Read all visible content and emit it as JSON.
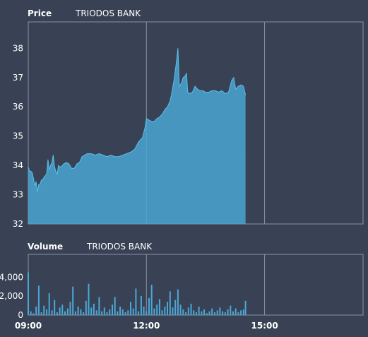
{
  "chart_data": [
    {
      "type": "area",
      "title": "Price",
      "series_label": "TRIODOS BANK",
      "ylim": [
        32,
        38.9
      ],
      "yticks": [
        32,
        33,
        34,
        35,
        36,
        37,
        38
      ],
      "grid": true,
      "color": "#4aa8d8",
      "x_range_minutes": [
        540,
        1050
      ],
      "points": [
        [
          540,
          33.95
        ],
        [
          542,
          33.8
        ],
        [
          544,
          33.8
        ],
        [
          546,
          33.75
        ],
        [
          548,
          33.55
        ],
        [
          550,
          33.3
        ],
        [
          552,
          33.45
        ],
        [
          554,
          33.1
        ],
        [
          556,
          33.35
        ],
        [
          558,
          33.35
        ],
        [
          560,
          33.5
        ],
        [
          562,
          33.5
        ],
        [
          564,
          33.6
        ],
        [
          566,
          33.65
        ],
        [
          568,
          33.7
        ],
        [
          570,
          34.2
        ],
        [
          572,
          33.85
        ],
        [
          574,
          34.0
        ],
        [
          576,
          34.1
        ],
        [
          578,
          34.35
        ],
        [
          580,
          33.95
        ],
        [
          582,
          33.8
        ],
        [
          584,
          33.7
        ],
        [
          586,
          34.0
        ],
        [
          588,
          33.95
        ],
        [
          590,
          33.95
        ],
        [
          594,
          34.05
        ],
        [
          598,
          34.1
        ],
        [
          602,
          34.05
        ],
        [
          606,
          33.9
        ],
        [
          610,
          33.9
        ],
        [
          614,
          34.05
        ],
        [
          618,
          34.1
        ],
        [
          622,
          34.3
        ],
        [
          626,
          34.35
        ],
        [
          630,
          34.4
        ],
        [
          636,
          34.4
        ],
        [
          642,
          34.35
        ],
        [
          648,
          34.4
        ],
        [
          654,
          34.35
        ],
        [
          660,
          34.3
        ],
        [
          666,
          34.35
        ],
        [
          672,
          34.3
        ],
        [
          678,
          34.3
        ],
        [
          684,
          34.35
        ],
        [
          690,
          34.4
        ],
        [
          696,
          34.45
        ],
        [
          702,
          34.55
        ],
        [
          708,
          34.8
        ],
        [
          714,
          34.95
        ],
        [
          718,
          35.3
        ],
        [
          720,
          35.6
        ],
        [
          724,
          35.55
        ],
        [
          728,
          35.5
        ],
        [
          732,
          35.5
        ],
        [
          736,
          35.6
        ],
        [
          740,
          35.65
        ],
        [
          744,
          35.75
        ],
        [
          748,
          35.9
        ],
        [
          752,
          36.0
        ],
        [
          756,
          36.2
        ],
        [
          758,
          36.4
        ],
        [
          762,
          36.9
        ],
        [
          765,
          37.4
        ],
        [
          767,
          37.8
        ],
        [
          768,
          38.0
        ],
        [
          770,
          36.7
        ],
        [
          773,
          36.8
        ],
        [
          776,
          37.0
        ],
        [
          779,
          37.05
        ],
        [
          781,
          37.15
        ],
        [
          783,
          36.5
        ],
        [
          786,
          36.45
        ],
        [
          790,
          36.5
        ],
        [
          794,
          36.7
        ],
        [
          798,
          36.6
        ],
        [
          802,
          36.55
        ],
        [
          806,
          36.55
        ],
        [
          810,
          36.5
        ],
        [
          815,
          36.5
        ],
        [
          820,
          36.55
        ],
        [
          825,
          36.55
        ],
        [
          830,
          36.5
        ],
        [
          835,
          36.55
        ],
        [
          840,
          36.45
        ],
        [
          845,
          36.5
        ],
        [
          850,
          36.9
        ],
        [
          853,
          37.0
        ],
        [
          856,
          36.6
        ],
        [
          860,
          36.7
        ],
        [
          864,
          36.75
        ],
        [
          868,
          36.7
        ],
        [
          871,
          36.4
        ]
      ]
    },
    {
      "type": "bar",
      "title": "Volume",
      "series_label": "TRIODOS BANK",
      "ylim": [
        0,
        6400
      ],
      "yticks": [
        0,
        2000,
        4000
      ],
      "ytick_labels": [
        "0",
        "2,000",
        "4,000"
      ],
      "xticks": [
        540,
        720,
        900
      ],
      "xtick_labels": [
        "09:00",
        "12:00",
        "15:00"
      ],
      "grid": true,
      "color": "#4aa8d8",
      "bars": [
        [
          540,
          4500
        ],
        [
          544,
          400
        ],
        [
          548,
          200
        ],
        [
          552,
          900
        ],
        [
          556,
          3100
        ],
        [
          560,
          300
        ],
        [
          564,
          1000
        ],
        [
          568,
          600
        ],
        [
          572,
          2300
        ],
        [
          576,
          500
        ],
        [
          580,
          1600
        ],
        [
          584,
          300
        ],
        [
          588,
          800
        ],
        [
          592,
          1100
        ],
        [
          596,
          400
        ],
        [
          600,
          700
        ],
        [
          604,
          1400
        ],
        [
          608,
          3000
        ],
        [
          612,
          400
        ],
        [
          616,
          900
        ],
        [
          620,
          600
        ],
        [
          624,
          300
        ],
        [
          628,
          1500
        ],
        [
          632,
          3300
        ],
        [
          636,
          800
        ],
        [
          640,
          1200
        ],
        [
          644,
          500
        ],
        [
          648,
          1900
        ],
        [
          652,
          400
        ],
        [
          656,
          800
        ],
        [
          660,
          300
        ],
        [
          664,
          600
        ],
        [
          668,
          1100
        ],
        [
          672,
          1900
        ],
        [
          676,
          400
        ],
        [
          680,
          900
        ],
        [
          684,
          600
        ],
        [
          688,
          300
        ],
        [
          692,
          500
        ],
        [
          696,
          1400
        ],
        [
          700,
          700
        ],
        [
          704,
          2800
        ],
        [
          708,
          400
        ],
        [
          712,
          2000
        ],
        [
          716,
          900
        ],
        [
          720,
          400
        ],
        [
          724,
          1800
        ],
        [
          728,
          3200
        ],
        [
          732,
          700
        ],
        [
          736,
          1100
        ],
        [
          740,
          1700
        ],
        [
          744,
          500
        ],
        [
          748,
          900
        ],
        [
          752,
          1400
        ],
        [
          756,
          2500
        ],
        [
          760,
          800
        ],
        [
          764,
          1600
        ],
        [
          768,
          2700
        ],
        [
          772,
          1100
        ],
        [
          776,
          600
        ],
        [
          780,
          300
        ],
        [
          784,
          800
        ],
        [
          788,
          1200
        ],
        [
          792,
          500
        ],
        [
          796,
          300
        ],
        [
          800,
          900
        ],
        [
          804,
          400
        ],
        [
          808,
          600
        ],
        [
          812,
          200
        ],
        [
          816,
          400
        ],
        [
          820,
          700
        ],
        [
          824,
          300
        ],
        [
          828,
          500
        ],
        [
          832,
          800
        ],
        [
          836,
          400
        ],
        [
          840,
          300
        ],
        [
          844,
          600
        ],
        [
          848,
          1000
        ],
        [
          852,
          400
        ],
        [
          856,
          700
        ],
        [
          860,
          300
        ],
        [
          864,
          500
        ],
        [
          868,
          600
        ],
        [
          871,
          1500
        ]
      ]
    }
  ]
}
